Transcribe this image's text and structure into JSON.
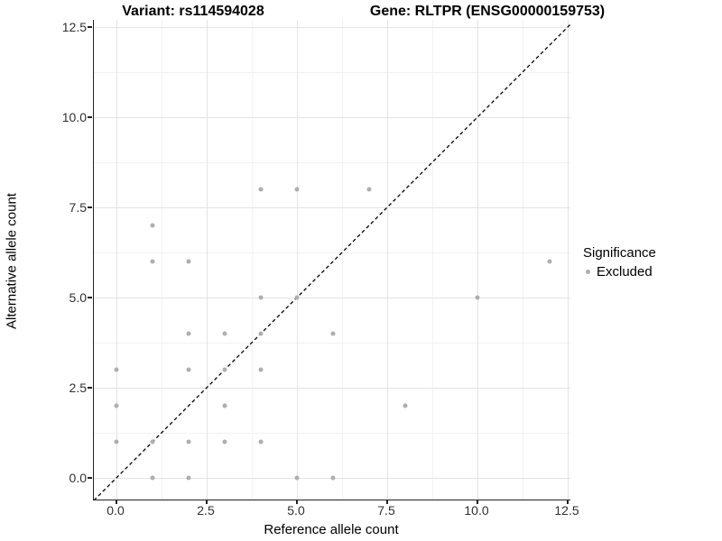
{
  "titles": {
    "left": "Variant: rs114594028",
    "right": "Gene: RLTPR (ENSG00000159753)"
  },
  "chart_data": {
    "type": "scatter",
    "xlabel": "Reference allele count",
    "ylabel": "Alternative allele count",
    "xlim": [
      -0.625,
      12.575
    ],
    "ylim": [
      -0.6,
      12.7
    ],
    "grid": true,
    "x_ticks": {
      "values": [
        0,
        2.5,
        5,
        7.5,
        10,
        12.5
      ],
      "labels": [
        "0.0",
        "2.5",
        "5.0",
        "7.5",
        "10.0",
        "12.5"
      ]
    },
    "y_ticks": {
      "values": [
        0,
        2.5,
        5,
        7.5,
        10,
        12.5
      ],
      "labels": [
        "0.0",
        "2.5",
        "5.0",
        "7.5",
        "10.0",
        "12.5"
      ]
    },
    "minor_tick_values": [
      1.25,
      3.75,
      6.25,
      8.75,
      11.25
    ],
    "identity_line": {
      "type": "dashed",
      "color": "#000000",
      "equation": "y = x"
    },
    "series": [
      {
        "name": "Excluded",
        "color": "#aeaeae",
        "points": [
          [
            4,
            8
          ],
          [
            5,
            8
          ],
          [
            7,
            8
          ],
          [
            1,
            7
          ],
          [
            1,
            6
          ],
          [
            2,
            6
          ],
          [
            12,
            6
          ],
          [
            4,
            5
          ],
          [
            5,
            5
          ],
          [
            10,
            5
          ],
          [
            2,
            4
          ],
          [
            3,
            4
          ],
          [
            4,
            4
          ],
          [
            6,
            4
          ],
          [
            0,
            3
          ],
          [
            2,
            3
          ],
          [
            3,
            3
          ],
          [
            4,
            3
          ],
          [
            0,
            2
          ],
          [
            3,
            2
          ],
          [
            8,
            2
          ],
          [
            0,
            1
          ],
          [
            1,
            1
          ],
          [
            2,
            1
          ],
          [
            3,
            1
          ],
          [
            4,
            1
          ],
          [
            1,
            0
          ],
          [
            2,
            0
          ],
          [
            5,
            0
          ],
          [
            6,
            0
          ]
        ]
      }
    ],
    "legend": {
      "position": "right",
      "title": "Significance",
      "items": [
        {
          "label": "Excluded",
          "color": "#aeaeae"
        }
      ]
    }
  }
}
